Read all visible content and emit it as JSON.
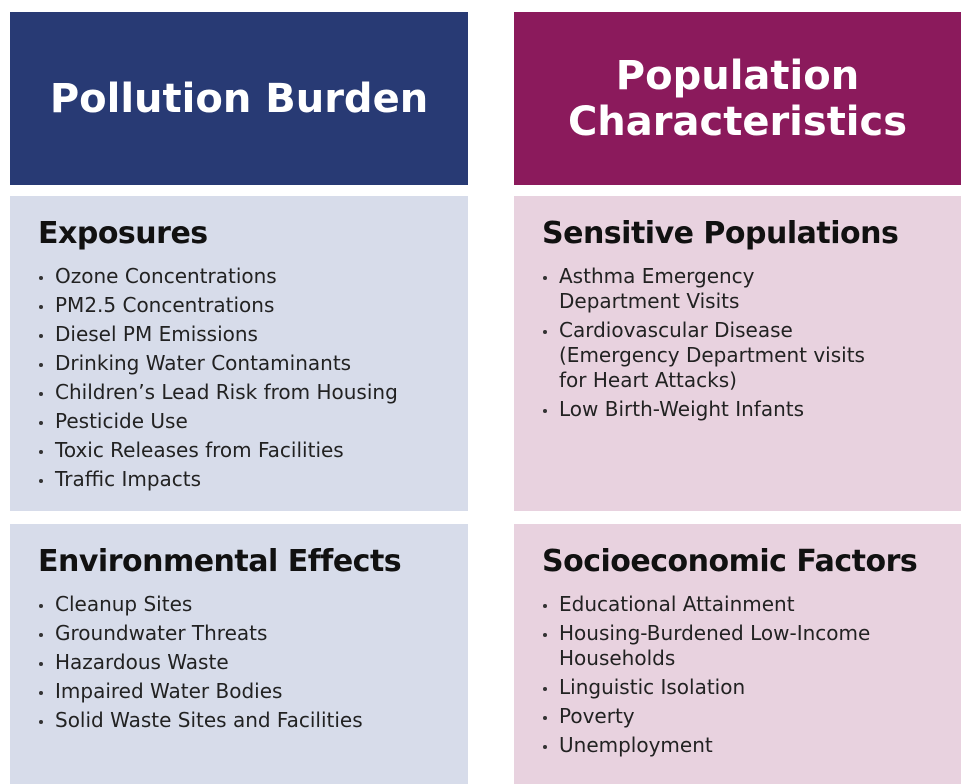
{
  "columns": [
    {
      "header": "Pollution Burden",
      "sections": [
        {
          "title": "Exposures",
          "items": [
            "Ozone Concentrations",
            "PM2.5 Concentrations",
            "Diesel PM Emissions",
            "Drinking Water Contaminants",
            "Children’s Lead Risk from Housing",
            "Pesticide Use",
            "Toxic Releases from Facilities",
            "Traffic Impacts"
          ]
        },
        {
          "title": "Environmental Effects",
          "items": [
            "Cleanup Sites",
            "Groundwater Threats",
            "Hazardous Waste",
            "Impaired Water Bodies",
            "Solid Waste Sites and Facilities"
          ]
        }
      ]
    },
    {
      "header": "Population\nCharacteristics",
      "sections": [
        {
          "title": "Sensitive Populations",
          "items": [
            "Asthma Emergency\nDepartment Visits",
            "Cardiovascular Disease\n(Emergency Department visits\nfor Heart Attacks)",
            "Low Birth-Weight Infants"
          ]
        },
        {
          "title": "Socioeconomic Factors",
          "items": [
            "Educational Attainment",
            "Housing-Burdened Low-Income\nHouseholds",
            "Linguistic Isolation",
            "Poverty",
            "Unemployment"
          ]
        }
      ]
    }
  ]
}
